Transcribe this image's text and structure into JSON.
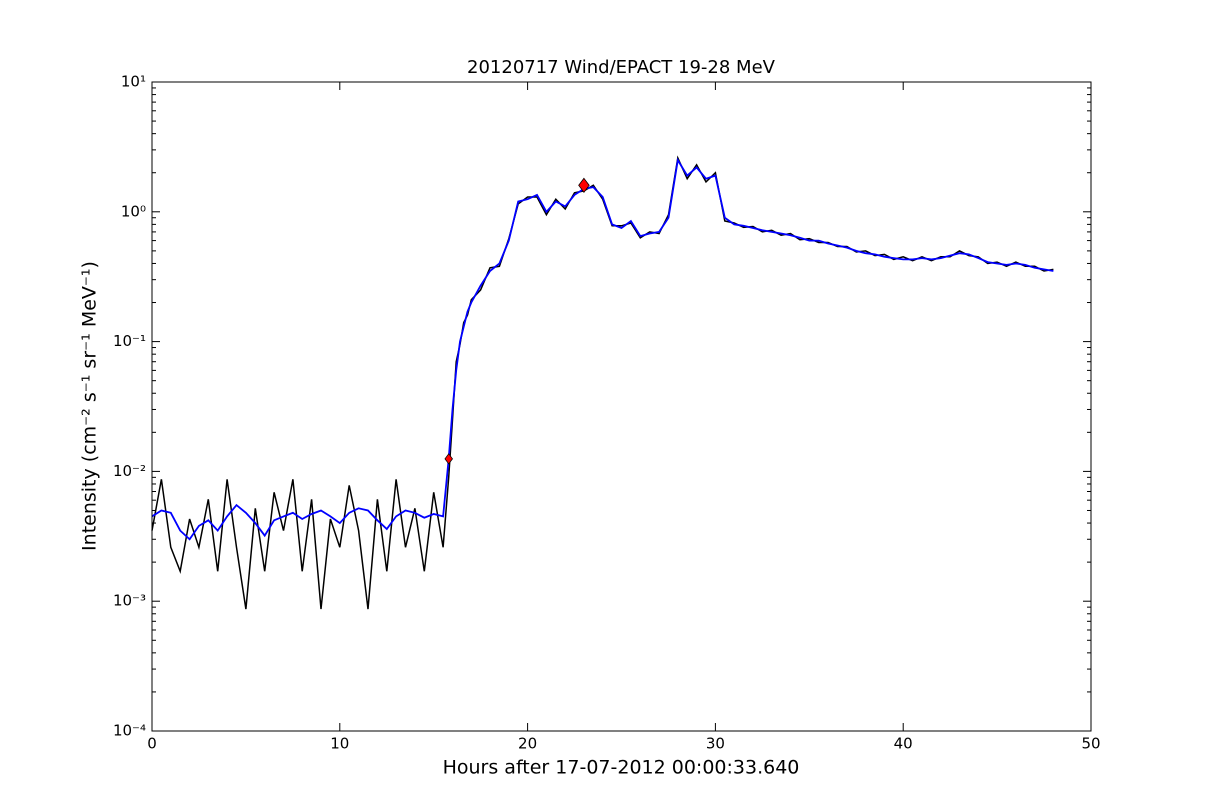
{
  "chart_data": {
    "type": "line",
    "title": "20120717 Wind/EPACT 19-28 MeV",
    "xlabel": "Hours after 17-07-2012 00:00:33.640",
    "ylabel": "Intensity (cm⁻² s⁻¹ sr⁻¹ MeV⁻¹)",
    "yscale": "log",
    "xlim": [
      0,
      50
    ],
    "xticks": [
      0,
      10,
      20,
      30,
      40,
      50
    ],
    "ylim": [
      0.0001,
      10
    ],
    "yticks": [
      {
        "value": 0.0001,
        "label": "10⁻⁴"
      },
      {
        "value": 0.001,
        "label": "10⁻³"
      },
      {
        "value": 0.01,
        "label": "10⁻²"
      },
      {
        "value": 0.1,
        "label": "10⁻¹"
      },
      {
        "value": 1,
        "label": "10⁰"
      },
      {
        "value": 10,
        "label": "10¹"
      }
    ],
    "x": [
      0,
      0.5,
      1,
      1.5,
      2,
      2.5,
      3,
      3.5,
      4,
      4.5,
      5,
      5.5,
      6,
      6.5,
      7,
      7.5,
      8,
      8.5,
      9,
      9.5,
      10,
      10.5,
      11,
      11.5,
      12,
      12.5,
      13,
      13.5,
      14,
      14.5,
      15,
      15.5,
      15.8,
      16,
      16.2,
      16.4,
      16.6,
      16.8,
      17,
      17.5,
      18,
      18.5,
      19,
      19.5,
      20,
      20.5,
      21,
      21.5,
      22,
      22.5,
      23,
      23.5,
      24,
      24.5,
      25,
      25.5,
      26,
      26.5,
      27,
      27.5,
      28,
      28.5,
      29,
      29.5,
      30,
      30.5,
      31,
      31.5,
      32,
      32.5,
      33,
      33.5,
      34,
      34.5,
      35,
      35.5,
      36,
      36.5,
      37,
      37.5,
      38,
      38.5,
      39,
      39.5,
      40,
      40.5,
      41,
      41.5,
      42,
      42.5,
      43,
      43.5,
      44,
      44.5,
      45,
      45.5,
      46,
      46.5,
      47,
      47.5,
      48
    ],
    "series": [
      {
        "color": "#000000",
        "values": [
          0.0035,
          0.0087,
          0.0026,
          0.0017,
          0.0043,
          0.0026,
          0.0061,
          0.0017,
          0.0087,
          0.0026,
          0.00087,
          0.0052,
          0.0017,
          0.0069,
          0.0035,
          0.0087,
          0.0017,
          0.0061,
          0.00087,
          0.0043,
          0.0026,
          0.0078,
          0.0035,
          0.00087,
          0.0061,
          0.0017,
          0.0087,
          0.0026,
          0.0052,
          0.0017,
          0.0069,
          0.0026,
          0.009,
          0.025,
          0.07,
          0.095,
          0.14,
          0.16,
          0.21,
          0.25,
          0.37,
          0.38,
          0.62,
          1.15,
          1.3,
          1.3,
          0.95,
          1.25,
          1.05,
          1.4,
          1.45,
          1.6,
          1.25,
          0.78,
          0.78,
          0.82,
          0.63,
          0.7,
          0.68,
          0.95,
          2.6,
          1.8,
          2.3,
          1.7,
          2.0,
          0.85,
          0.82,
          0.76,
          0.77,
          0.7,
          0.72,
          0.66,
          0.68,
          0.61,
          0.62,
          0.58,
          0.58,
          0.54,
          0.54,
          0.49,
          0.5,
          0.46,
          0.47,
          0.43,
          0.45,
          0.42,
          0.45,
          0.42,
          0.45,
          0.45,
          0.5,
          0.46,
          0.45,
          0.4,
          0.41,
          0.38,
          0.41,
          0.38,
          0.38,
          0.35,
          0.36
        ]
      },
      {
        "color": "#0000ff",
        "values": [
          0.0045,
          0.005,
          0.0048,
          0.0035,
          0.003,
          0.0038,
          0.0042,
          0.0035,
          0.0045,
          0.0055,
          0.0048,
          0.004,
          0.0032,
          0.0042,
          0.0045,
          0.0048,
          0.0043,
          0.0047,
          0.005,
          0.0045,
          0.004,
          0.0048,
          0.0052,
          0.005,
          0.0042,
          0.0036,
          0.0045,
          0.005,
          0.0048,
          0.0044,
          0.0047,
          0.0045,
          0.0125,
          0.03,
          0.06,
          0.1,
          0.13,
          0.17,
          0.2,
          0.27,
          0.35,
          0.4,
          0.6,
          1.2,
          1.25,
          1.35,
          1.0,
          1.2,
          1.1,
          1.35,
          1.5,
          1.55,
          1.3,
          0.8,
          0.75,
          0.85,
          0.65,
          0.68,
          0.7,
          0.9,
          2.5,
          1.9,
          2.2,
          1.8,
          1.9,
          0.9,
          0.8,
          0.78,
          0.75,
          0.72,
          0.7,
          0.68,
          0.66,
          0.63,
          0.6,
          0.6,
          0.57,
          0.55,
          0.53,
          0.5,
          0.48,
          0.47,
          0.45,
          0.44,
          0.43,
          0.43,
          0.44,
          0.43,
          0.44,
          0.46,
          0.48,
          0.47,
          0.44,
          0.41,
          0.4,
          0.39,
          0.4,
          0.39,
          0.37,
          0.36,
          0.35
        ]
      }
    ],
    "points": {
      "color": "#ff0000",
      "x": [
        15.8,
        23.0
      ],
      "y": [
        0.0125,
        1.6
      ]
    }
  }
}
